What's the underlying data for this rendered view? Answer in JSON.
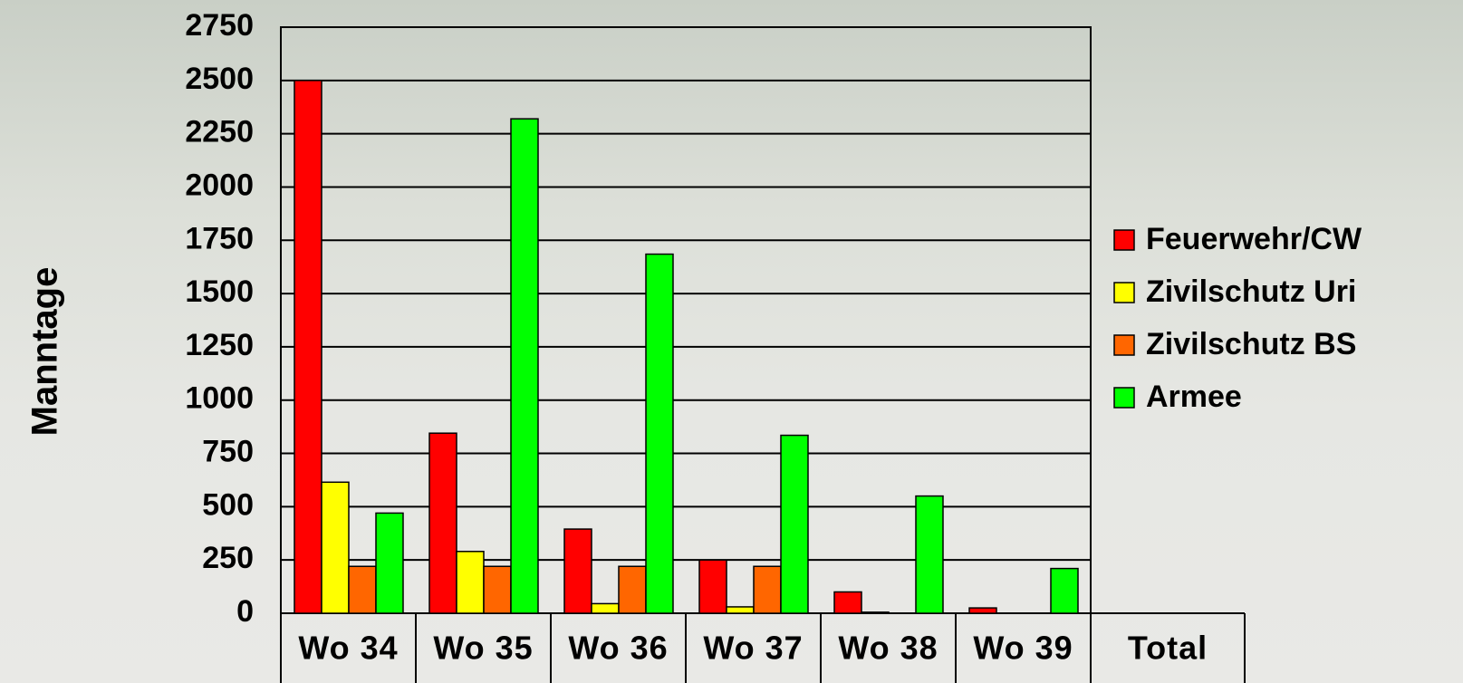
{
  "chart_data": {
    "type": "bar",
    "y_label": "Manntage",
    "categories": [
      "Wo 34",
      "Wo 35",
      "Wo 36",
      "Wo 37",
      "Wo 38",
      "Wo 39",
      "Total"
    ],
    "series": [
      {
        "name": "Feuerwehr/CW",
        "color": "#ff0000",
        "values": [
          2500,
          845,
          395,
          250,
          100,
          25,
          null
        ]
      },
      {
        "name": "Zivilschutz Uri",
        "color": "#ffff00",
        "values": [
          615,
          290,
          45,
          30,
          5,
          0,
          null
        ]
      },
      {
        "name": "Zivilschutz BS",
        "color": "#ff6600",
        "values": [
          220,
          220,
          220,
          220,
          0,
          0,
          null
        ]
      },
      {
        "name": "Armee",
        "color": "#00ff00",
        "values": [
          470,
          2320,
          1685,
          835,
          550,
          210,
          null
        ]
      }
    ],
    "ylim": [
      0,
      2750
    ],
    "yticks": [
      0,
      250,
      500,
      750,
      1000,
      1250,
      1500,
      1750,
      2000,
      2250,
      2500,
      2750
    ],
    "grid": true,
    "legend": "right"
  }
}
